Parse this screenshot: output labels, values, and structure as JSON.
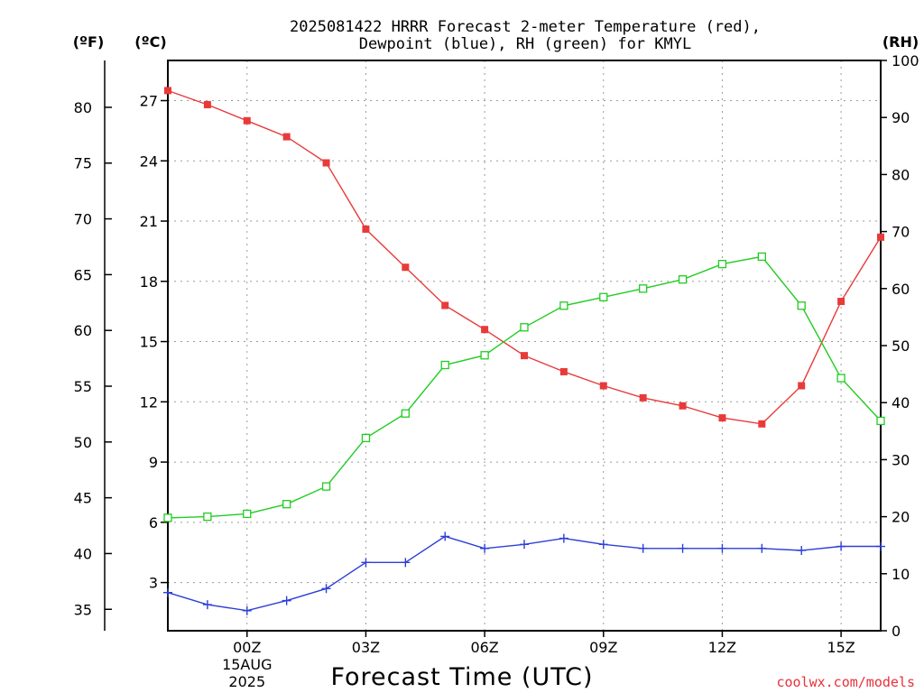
{
  "chart_data": {
    "type": "line",
    "title_line1": "2025081422 HRRR Forecast 2-meter Temperature (red),",
    "title_line2": "Dewpoint (blue), RH (green) for KMYL",
    "xlabel": "Forecast Time (UTC)",
    "credit": "coolwx.com/models",
    "units": {
      "fahrenheit": "(ºF)",
      "celsius": "(ºC)",
      "rh": "(RH)"
    },
    "x": [
      -2,
      -1,
      0,
      1,
      2,
      3,
      4,
      5,
      6,
      7,
      8,
      9,
      10,
      11,
      12,
      13,
      14,
      15,
      16
    ],
    "x_unit": "hours from 2025-08-15 00Z",
    "xlim": [
      -2,
      16
    ],
    "x_ticks": [
      {
        "x": 0,
        "label": "00Z",
        "sub1": "15AUG",
        "sub2": "2025"
      },
      {
        "x": 3,
        "label": "03Z"
      },
      {
        "x": 6,
        "label": "06Z"
      },
      {
        "x": 9,
        "label": "09Z"
      },
      {
        "x": 12,
        "label": "12Z"
      },
      {
        "x": 15,
        "label": "15Z"
      }
    ],
    "celsius_axis": {
      "ylim": [
        0.6,
        29.0
      ],
      "ticks": [
        "3",
        "6",
        "9",
        "12",
        "15",
        "18",
        "21",
        "24",
        "27"
      ]
    },
    "fahrenheit_axis": {
      "ticks": [
        "35",
        "40",
        "45",
        "50",
        "55",
        "60",
        "65",
        "70",
        "75",
        "80"
      ]
    },
    "rh_axis": {
      "ylim": [
        0,
        100
      ],
      "ticks": [
        "0",
        "10",
        "20",
        "30",
        "40",
        "50",
        "60",
        "70",
        "80",
        "90",
        "100"
      ]
    },
    "grid": true,
    "series": [
      {
        "name": "Temperature",
        "color": "#e83a3a",
        "axis": "celsius",
        "marker": "filled-square",
        "values": [
          27.5,
          26.8,
          26.0,
          25.2,
          23.9,
          20.6,
          18.7,
          16.8,
          15.6,
          14.3,
          13.5,
          12.8,
          12.2,
          11.8,
          11.2,
          10.9,
          12.8,
          17.0,
          20.2
        ]
      },
      {
        "name": "Dewpoint",
        "color": "#2c3fd6",
        "axis": "celsius",
        "marker": "plus",
        "values": [
          2.5,
          1.9,
          1.6,
          2.1,
          2.7,
          4.0,
          4.0,
          5.3,
          4.7,
          4.9,
          5.2,
          4.9,
          4.7,
          4.7,
          4.7,
          4.7,
          4.6,
          4.8,
          4.8
        ]
      },
      {
        "name": "Relative Humidity",
        "color": "#22cc22",
        "axis": "rh",
        "marker": "open-square",
        "values": [
          19.8,
          20.0,
          20.5,
          22.2,
          25.3,
          33.8,
          38.1,
          46.6,
          48.3,
          53.2,
          57.0,
          58.5,
          60.0,
          61.6,
          64.3,
          65.6,
          57.0,
          44.3,
          36.8
        ]
      }
    ]
  }
}
